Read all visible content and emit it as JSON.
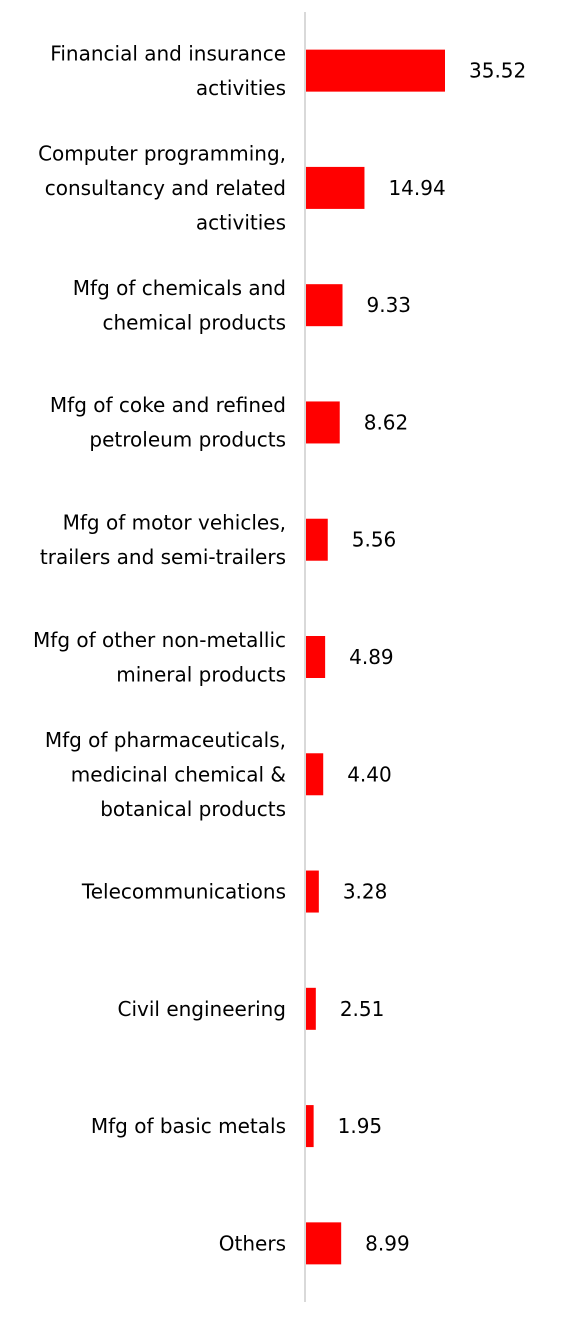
{
  "chart_data": {
    "type": "bar",
    "orientation": "horizontal",
    "categories": [
      [
        "Financial and insurance",
        "activities"
      ],
      [
        "Computer programming,",
        "consultancy and related",
        "activities"
      ],
      [
        "Mfg of chemicals and",
        "chemical products"
      ],
      [
        "Mfg of coke and refined",
        "petroleum products"
      ],
      [
        "Mfg of motor vehicles,",
        "trailers and semi-trailers"
      ],
      [
        "Mfg of other non-metallic",
        "mineral products"
      ],
      [
        "Mfg of pharmaceuticals,",
        "medicinal chemical &",
        "botanical products"
      ],
      [
        "Telecommunications"
      ],
      [
        "Civil engineering"
      ],
      [
        "Mfg of basic metals"
      ],
      [
        "Others"
      ]
    ],
    "values": [
      35.52,
      14.94,
      9.33,
      8.62,
      5.56,
      4.89,
      4.4,
      3.28,
      2.51,
      1.95,
      8.99
    ],
    "value_labels": [
      "35.52",
      "14.94",
      "9.33",
      "8.62",
      "5.56",
      "4.89",
      "4.40",
      "3.28",
      "2.51",
      "1.95",
      "8.99"
    ],
    "bar_color": "#ff0000",
    "axis_color": "#d9d9d9",
    "xlim": [
      0,
      50
    ],
    "grid": false,
    "legend": "none"
  }
}
